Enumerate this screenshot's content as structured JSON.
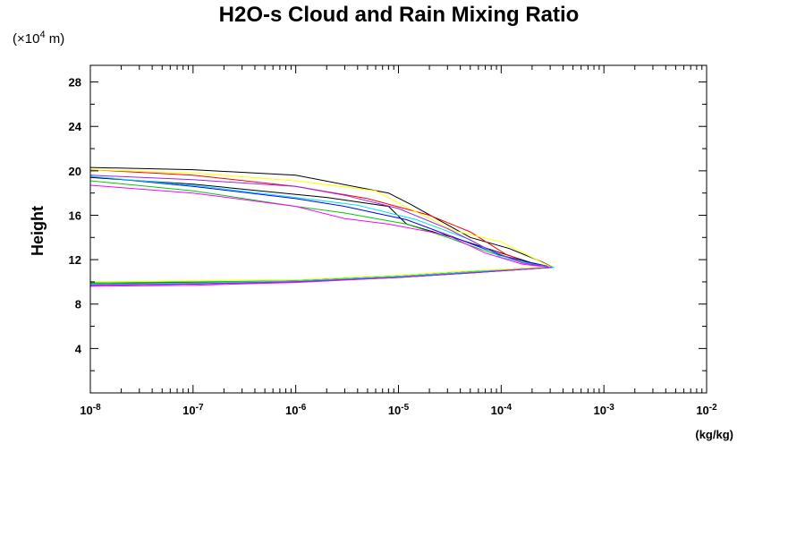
{
  "chart_data": {
    "type": "line",
    "title": "H2O-s Cloud and Rain Mixing Ratio",
    "y_unit_prefix": "(×10",
    "y_unit_exp": "4",
    "y_unit_suffix": " m)",
    "ylabel": "Height",
    "xlabel_unit": "(kg/kg)",
    "x_scale": "log",
    "xlim": [
      1e-08,
      0.01
    ],
    "ylim": [
      0,
      29.5
    ],
    "x_ticks": [
      {
        "value": 1e-08,
        "base": "10",
        "exp": "-8"
      },
      {
        "value": 1e-07,
        "base": "10",
        "exp": "-7"
      },
      {
        "value": 1e-06,
        "base": "10",
        "exp": "-6"
      },
      {
        "value": 1e-05,
        "base": "10",
        "exp": "-5"
      },
      {
        "value": 0.0001,
        "base": "10",
        "exp": "-4"
      },
      {
        "value": 0.001,
        "base": "10",
        "exp": "-3"
      },
      {
        "value": 0.01,
        "base": "10",
        "exp": "-2"
      }
    ],
    "y_ticks": [
      4,
      8,
      12,
      16,
      20,
      24,
      28
    ],
    "y_minor_step": 2,
    "grid": false,
    "legend": "none",
    "series": [
      {
        "color": "#000000",
        "points": [
          [
            1e-08,
            9.8
          ],
          [
            1e-07,
            9.9
          ],
          [
            1e-06,
            10.1
          ],
          [
            1e-05,
            10.5
          ],
          [
            5e-05,
            10.9
          ],
          [
            0.00015,
            11.2
          ],
          [
            0.00032,
            11.3
          ],
          [
            0.0002,
            11.7
          ],
          [
            0.0001,
            12.6
          ],
          [
            4e-05,
            13.8
          ],
          [
            1.2e-05,
            15.2
          ],
          [
            8e-06,
            16.8
          ],
          [
            2e-06,
            17.6
          ],
          [
            1e-07,
            18.8
          ],
          [
            1e-08,
            19.4
          ]
        ]
      },
      {
        "color": "#000000",
        "points": [
          [
            1e-08,
            9.9
          ],
          [
            1e-07,
            9.95
          ],
          [
            1e-06,
            10.1
          ],
          [
            1e-05,
            10.5
          ],
          [
            5e-05,
            10.9
          ],
          [
            0.00015,
            11.2
          ],
          [
            0.00032,
            11.3
          ],
          [
            0.00025,
            11.8
          ],
          [
            0.00012,
            13.0
          ],
          [
            5e-05,
            14.0
          ],
          [
            1.3e-05,
            17.0
          ],
          [
            8e-06,
            18.0
          ],
          [
            1e-06,
            19.6
          ],
          [
            1e-07,
            20.1
          ],
          [
            1e-08,
            20.3
          ]
        ]
      },
      {
        "color": "#ff0000",
        "points": [
          [
            1e-08,
            9.8
          ],
          [
            1e-07,
            9.9
          ],
          [
            1e-06,
            10.1
          ],
          [
            1e-05,
            10.5
          ],
          [
            5e-05,
            10.9
          ],
          [
            0.00015,
            11.2
          ],
          [
            0.00032,
            11.3
          ],
          [
            0.0002,
            11.6
          ],
          [
            0.00011,
            12.5
          ],
          [
            5e-05,
            14.5
          ],
          [
            2e-05,
            16.0
          ],
          [
            5e-06,
            17.5
          ],
          [
            1e-06,
            18.6
          ],
          [
            1e-07,
            19.6
          ],
          [
            1e-08,
            20.1
          ]
        ]
      },
      {
        "color": "#00cc00",
        "points": [
          [
            1e-08,
            9.9
          ],
          [
            1e-07,
            10.0
          ],
          [
            1e-06,
            10.1
          ],
          [
            1e-05,
            10.5
          ],
          [
            5e-05,
            10.9
          ],
          [
            0.00015,
            11.2
          ],
          [
            0.00032,
            11.3
          ],
          [
            0.00018,
            11.7
          ],
          [
            8e-05,
            12.6
          ],
          [
            3e-05,
            14.0
          ],
          [
            1.2e-05,
            15.2
          ],
          [
            3e-06,
            16.2
          ],
          [
            1e-06,
            16.8
          ],
          [
            1e-07,
            18.2
          ],
          [
            1e-08,
            19.1
          ]
        ]
      },
      {
        "color": "#0000ff",
        "points": [
          [
            1e-08,
            9.7
          ],
          [
            1e-07,
            9.8
          ],
          [
            1e-06,
            10.0
          ],
          [
            1e-05,
            10.4
          ],
          [
            5e-05,
            10.8
          ],
          [
            0.00015,
            11.1
          ],
          [
            0.00032,
            11.3
          ],
          [
            0.0002,
            11.7
          ],
          [
            0.0001,
            12.4
          ],
          [
            4e-05,
            13.8
          ],
          [
            1.2e-05,
            15.6
          ],
          [
            3e-06,
            16.8
          ],
          [
            1e-06,
            17.5
          ],
          [
            1e-07,
            18.6
          ],
          [
            1e-08,
            19.5
          ]
        ]
      },
      {
        "color": "#00e5e5",
        "points": [
          [
            1e-08,
            9.8
          ],
          [
            1e-07,
            9.9
          ],
          [
            1e-06,
            10.1
          ],
          [
            1e-05,
            10.5
          ],
          [
            5e-05,
            10.9
          ],
          [
            0.00015,
            11.2
          ],
          [
            0.00033,
            11.3
          ],
          [
            0.0002,
            11.6
          ],
          [
            0.0001,
            12.2
          ],
          [
            5e-05,
            13.8
          ],
          [
            1.5e-05,
            15.6
          ],
          [
            4e-06,
            16.9
          ],
          [
            1e-06,
            17.6
          ],
          [
            1e-07,
            18.7
          ],
          [
            1e-08,
            19.5
          ]
        ]
      },
      {
        "color": "#ff00ff",
        "points": [
          [
            1e-08,
            9.6
          ],
          [
            1e-07,
            9.7
          ],
          [
            1e-06,
            9.95
          ],
          [
            1e-05,
            10.4
          ],
          [
            5e-05,
            10.8
          ],
          [
            0.00015,
            11.1
          ],
          [
            0.0003,
            11.3
          ],
          [
            0.00016,
            11.6
          ],
          [
            7e-05,
            12.6
          ],
          [
            3e-05,
            14.2
          ],
          [
            8e-06,
            15.2
          ],
          [
            3e-06,
            15.7
          ],
          [
            1e-06,
            16.8
          ],
          [
            1e-07,
            18.0
          ],
          [
            1e-08,
            18.7
          ]
        ]
      },
      {
        "color": "#ffff00",
        "points": [
          [
            1e-08,
            10.0
          ],
          [
            1e-07,
            10.1
          ],
          [
            1e-06,
            10.2
          ],
          [
            1e-05,
            10.6
          ],
          [
            5e-05,
            11.0
          ],
          [
            0.00015,
            11.2
          ],
          [
            0.0003,
            11.4
          ],
          [
            0.00022,
            12.0
          ],
          [
            0.0001,
            13.6
          ],
          [
            3.5e-05,
            14.6
          ],
          [
            1.1e-05,
            16.9
          ],
          [
            6e-06,
            18.2
          ],
          [
            1e-06,
            19.1
          ],
          [
            1e-07,
            19.8
          ],
          [
            1e-08,
            20.1
          ]
        ]
      },
      {
        "color": "#a020f0",
        "points": [
          [
            1e-08,
            9.7
          ],
          [
            1e-07,
            9.8
          ],
          [
            1e-06,
            10.0
          ],
          [
            1e-05,
            10.4
          ],
          [
            5e-05,
            10.8
          ],
          [
            0.00015,
            11.1
          ],
          [
            0.00031,
            11.3
          ],
          [
            0.00016,
            11.7
          ],
          [
            8e-05,
            12.8
          ],
          [
            3e-05,
            14.8
          ],
          [
            1e-05,
            16.6
          ],
          [
            3e-06,
            17.8
          ],
          [
            1e-06,
            18.6
          ],
          [
            1e-07,
            19.2
          ],
          [
            1e-08,
            19.6
          ]
        ]
      }
    ]
  }
}
